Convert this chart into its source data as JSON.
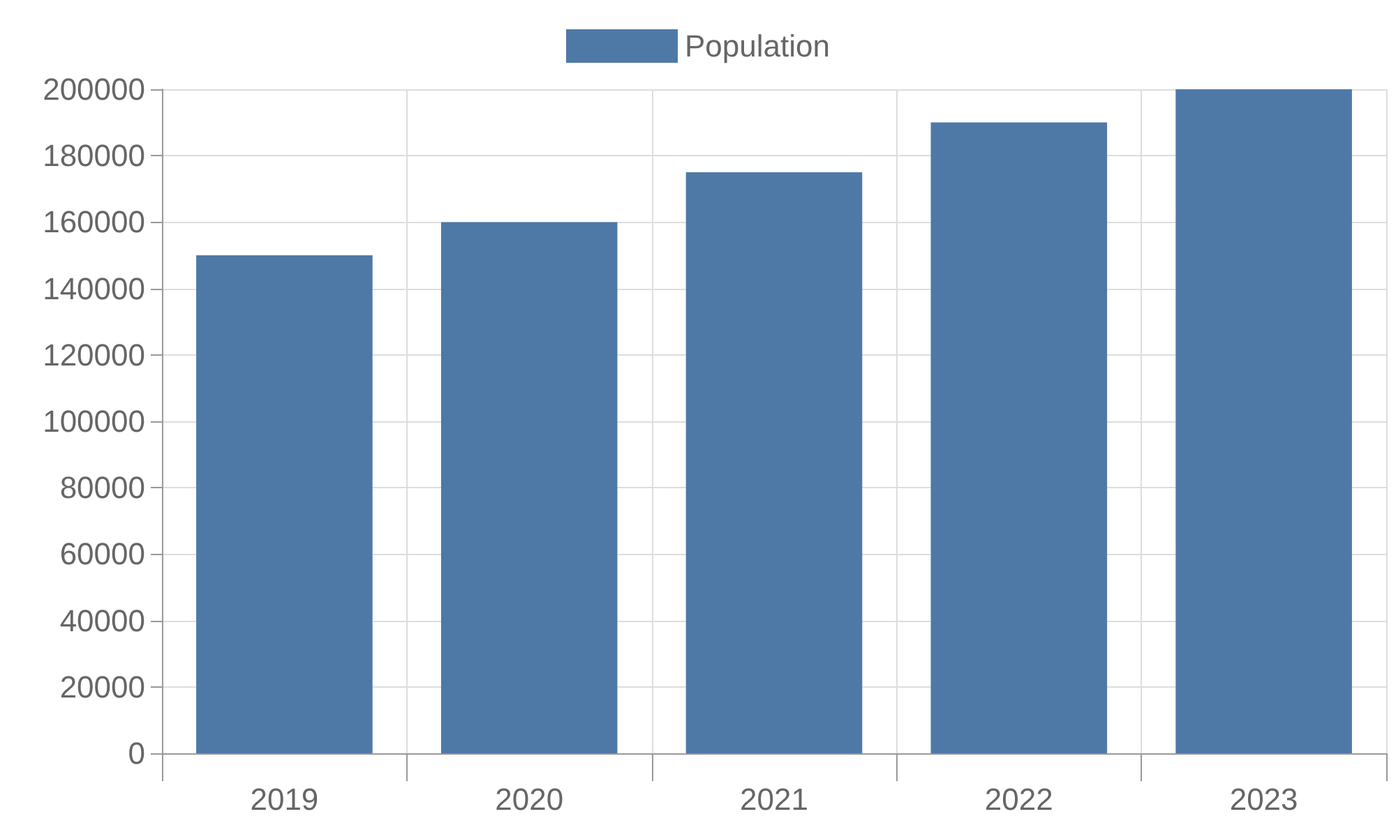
{
  "chart_data": {
    "type": "bar",
    "categories": [
      "2019",
      "2020",
      "2021",
      "2022",
      "2023"
    ],
    "series": [
      {
        "name": "Population",
        "color": "#4e79a7",
        "values": [
          150000,
          160000,
          175000,
          190000,
          200000
        ]
      }
    ],
    "ylim": [
      0,
      200000
    ],
    "yticks": [
      0,
      20000,
      40000,
      60000,
      80000,
      100000,
      120000,
      140000,
      160000,
      180000,
      200000
    ],
    "grid": true,
    "legend": "top"
  }
}
